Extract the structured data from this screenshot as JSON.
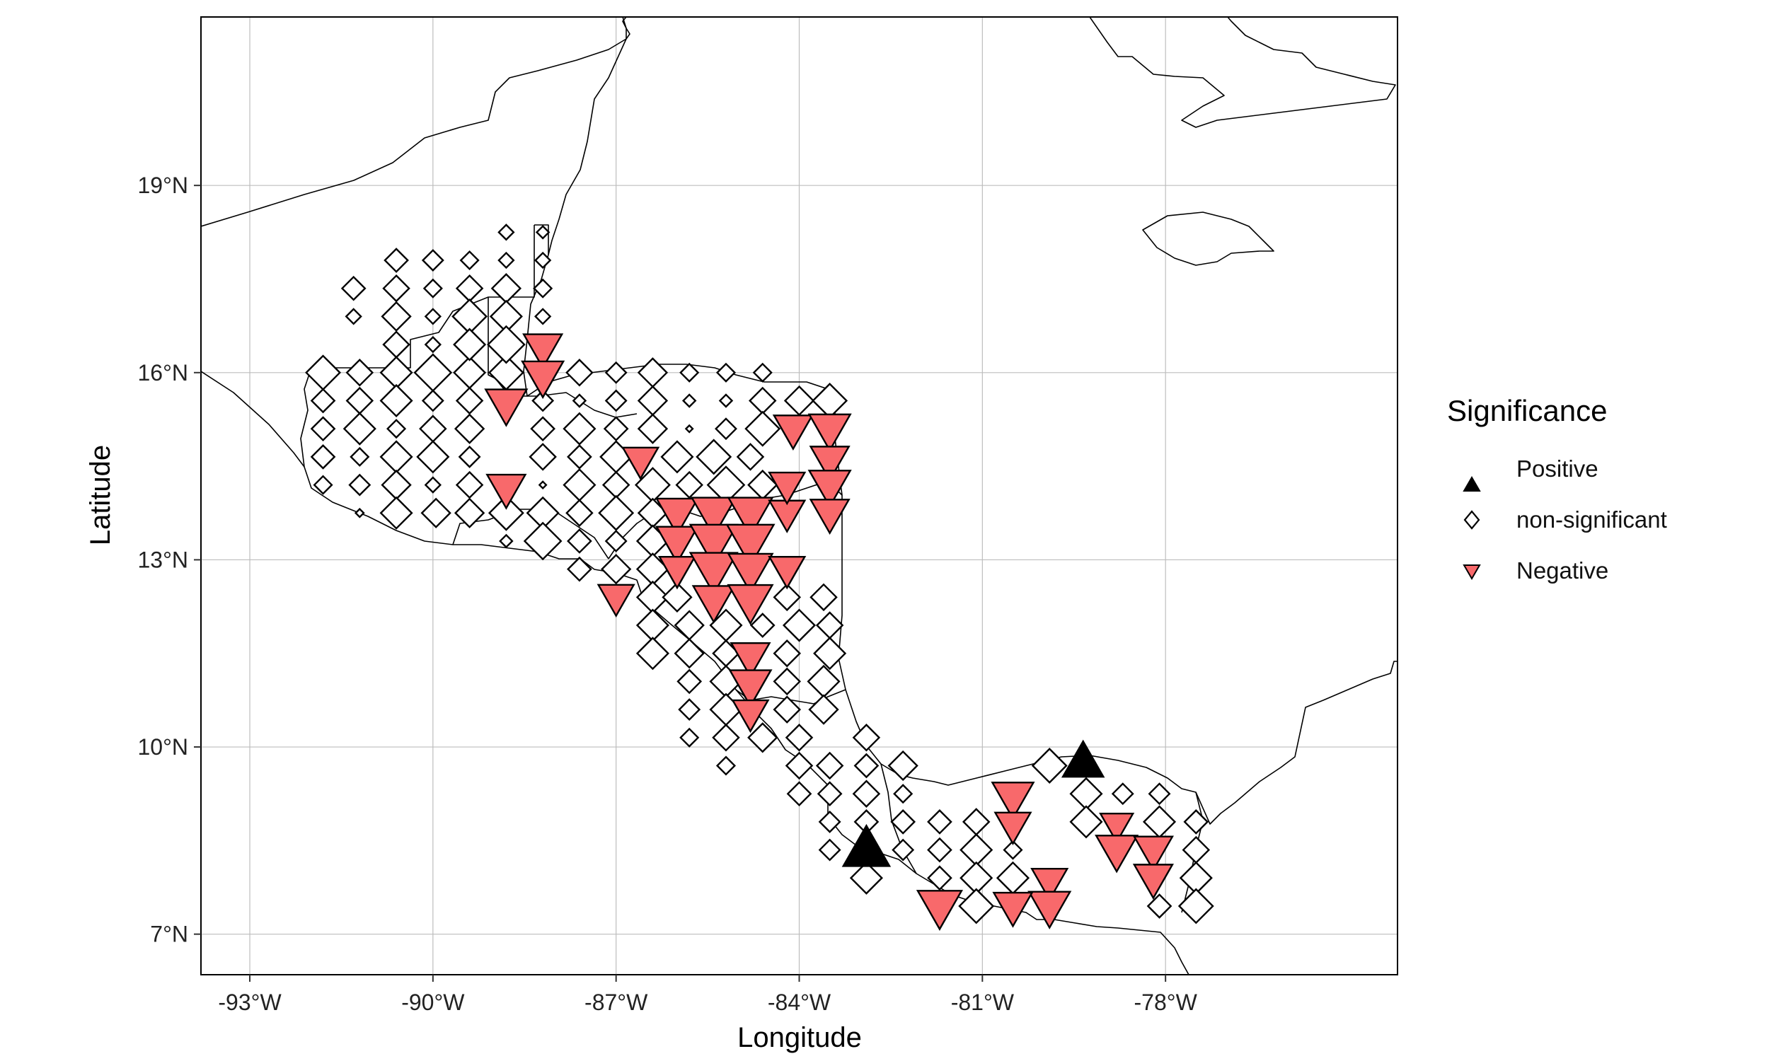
{
  "chart_data": {
    "type": "scatter",
    "xlabel": "Longitude",
    "ylabel": "Latitude",
    "xlim": [
      -93.8,
      -74.2
    ],
    "ylim": [
      6.35,
      21.7
    ],
    "x_ticks": [
      {
        "value": -93,
        "label": "-93°W"
      },
      {
        "value": -90,
        "label": "-90°W"
      },
      {
        "value": -87,
        "label": "-87°W"
      },
      {
        "value": -84,
        "label": "-84°W"
      },
      {
        "value": -81,
        "label": "-81°W"
      },
      {
        "value": -78,
        "label": "-78°W"
      }
    ],
    "y_ticks": [
      {
        "value": 7,
        "label": "7°N"
      },
      {
        "value": 10,
        "label": "10°N"
      },
      {
        "value": 13,
        "label": "13°N"
      },
      {
        "value": 16,
        "label": "16°N"
      },
      {
        "value": 19,
        "label": "19°N"
      }
    ],
    "grid": true,
    "legend": {
      "title": "Significance",
      "placement": "right",
      "entries": [
        {
          "label": "Positive",
          "shape": "triangle-up",
          "color": "#000000"
        },
        {
          "label": "non-significant",
          "shape": "diamond",
          "color": "#ffffff"
        },
        {
          "label": "Negative",
          "shape": "triangle-down",
          "color": "#f8696b"
        }
      ]
    },
    "colors": {
      "positive": "#000000",
      "nonsig": "#ffffff",
      "negative": "#f8696b"
    },
    "size_column_note": "point size encodes effect magnitude (0-3 scale)",
    "positive_points": [
      {
        "lon": -82.9,
        "lat": 8.35,
        "size": 3
      },
      {
        "lon": -79.35,
        "lat": 9.75,
        "size": 2.6
      }
    ],
    "negative_points": [
      {
        "lon": -88.2,
        "lat": 16.4,
        "size": 2.4
      },
      {
        "lon": -88.2,
        "lat": 15.95,
        "size": 2.6
      },
      {
        "lon": -88.8,
        "lat": 15.5,
        "size": 2.6
      },
      {
        "lon": -88.8,
        "lat": 14.15,
        "size": 2.4
      },
      {
        "lon": -87.0,
        "lat": 12.4,
        "size": 2.2
      },
      {
        "lon": -86.6,
        "lat": 14.6,
        "size": 2.2
      },
      {
        "lon": -86.0,
        "lat": 13.75,
        "size": 2.6
      },
      {
        "lon": -86.0,
        "lat": 13.3,
        "size": 2.6
      },
      {
        "lon": -86.0,
        "lat": 12.85,
        "size": 2.2
      },
      {
        "lon": -85.4,
        "lat": 13.75,
        "size": 2.8
      },
      {
        "lon": -85.4,
        "lat": 13.3,
        "size": 3
      },
      {
        "lon": -85.4,
        "lat": 12.85,
        "size": 3
      },
      {
        "lon": -85.4,
        "lat": 12.35,
        "size": 2.6
      },
      {
        "lon": -84.8,
        "lat": 13.75,
        "size": 2.8
      },
      {
        "lon": -84.8,
        "lat": 13.3,
        "size": 3
      },
      {
        "lon": -84.8,
        "lat": 12.85,
        "size": 2.8
      },
      {
        "lon": -84.8,
        "lat": 12.35,
        "size": 2.8
      },
      {
        "lon": -84.2,
        "lat": 12.85,
        "size": 2.2
      },
      {
        "lon": -84.2,
        "lat": 13.75,
        "size": 2.2
      },
      {
        "lon": -84.2,
        "lat": 14.2,
        "size": 2.2
      },
      {
        "lon": -84.1,
        "lat": 15.1,
        "size": 2.4
      },
      {
        "lon": -83.5,
        "lat": 15.1,
        "size": 2.6
      },
      {
        "lon": -83.5,
        "lat": 14.6,
        "size": 2.4
      },
      {
        "lon": -83.5,
        "lat": 14.2,
        "size": 2.6
      },
      {
        "lon": -83.5,
        "lat": 13.75,
        "size": 2.4
      },
      {
        "lon": -84.8,
        "lat": 11.45,
        "size": 2.4
      },
      {
        "lon": -84.8,
        "lat": 11.0,
        "size": 2.6
      },
      {
        "lon": -84.8,
        "lat": 10.55,
        "size": 2.2
      },
      {
        "lon": -80.5,
        "lat": 9.2,
        "size": 2.6
      },
      {
        "lon": -80.5,
        "lat": 8.75,
        "size": 2.2
      },
      {
        "lon": -78.8,
        "lat": 8.75,
        "size": 2.0
      },
      {
        "lon": -78.8,
        "lat": 8.35,
        "size": 2.6
      },
      {
        "lon": -78.2,
        "lat": 8.35,
        "size": 2.4
      },
      {
        "lon": -78.2,
        "lat": 7.9,
        "size": 2.4
      },
      {
        "lon": -79.9,
        "lat": 7.85,
        "size": 2.2
      },
      {
        "lon": -79.9,
        "lat": 7.45,
        "size": 2.6
      },
      {
        "lon": -80.5,
        "lat": 7.45,
        "size": 2.4
      },
      {
        "lon": -81.7,
        "lat": 7.45,
        "size": 2.8
      }
    ],
    "nonsig_points": [
      {
        "lon": -91.8,
        "lat": 16.0,
        "size": 2.2
      },
      {
        "lon": -91.2,
        "lat": 16.0,
        "size": 1.6
      },
      {
        "lon": -90.6,
        "lat": 16.0,
        "size": 2.0
      },
      {
        "lon": -90.0,
        "lat": 16.0,
        "size": 2.4
      },
      {
        "lon": -89.4,
        "lat": 16.0,
        "size": 2.0
      },
      {
        "lon": -88.8,
        "lat": 16.0,
        "size": 2.2
      },
      {
        "lon": -91.8,
        "lat": 15.55,
        "size": 1.4
      },
      {
        "lon": -91.2,
        "lat": 15.55,
        "size": 1.6
      },
      {
        "lon": -90.6,
        "lat": 15.55,
        "size": 2.0
      },
      {
        "lon": -90.0,
        "lat": 15.55,
        "size": 1.2
      },
      {
        "lon": -89.4,
        "lat": 15.55,
        "size": 1.6
      },
      {
        "lon": -91.8,
        "lat": 15.1,
        "size": 1.4
      },
      {
        "lon": -91.2,
        "lat": 15.1,
        "size": 2.0
      },
      {
        "lon": -90.6,
        "lat": 15.1,
        "size": 1.0
      },
      {
        "lon": -90.0,
        "lat": 15.1,
        "size": 1.6
      },
      {
        "lon": -89.4,
        "lat": 15.1,
        "size": 1.8
      },
      {
        "lon": -91.8,
        "lat": 14.65,
        "size": 1.4
      },
      {
        "lon": -91.2,
        "lat": 14.65,
        "size": 1.0
      },
      {
        "lon": -90.6,
        "lat": 14.65,
        "size": 2.0
      },
      {
        "lon": -90.0,
        "lat": 14.65,
        "size": 2.0
      },
      {
        "lon": -89.4,
        "lat": 14.65,
        "size": 1.2
      },
      {
        "lon": -91.8,
        "lat": 14.2,
        "size": 1.0
      },
      {
        "lon": -91.2,
        "lat": 14.2,
        "size": 1.2
      },
      {
        "lon": -90.6,
        "lat": 14.2,
        "size": 1.8
      },
      {
        "lon": -90.0,
        "lat": 14.2,
        "size": 0.8
      },
      {
        "lon": -89.4,
        "lat": 14.2,
        "size": 1.6
      },
      {
        "lon": -91.2,
        "lat": 13.75,
        "size": 0.3
      },
      {
        "lon": -90.6,
        "lat": 13.75,
        "size": 2.0
      },
      {
        "lon": -89.95,
        "lat": 13.75,
        "size": 1.8
      },
      {
        "lon": -89.4,
        "lat": 13.75,
        "size": 1.8
      },
      {
        "lon": -91.3,
        "lat": 17.35,
        "size": 1.4
      },
      {
        "lon": -91.3,
        "lat": 16.9,
        "size": 0.8
      },
      {
        "lon": -90.6,
        "lat": 17.8,
        "size": 1.4
      },
      {
        "lon": -90.0,
        "lat": 17.8,
        "size": 1.2
      },
      {
        "lon": -89.4,
        "lat": 17.8,
        "size": 1.0
      },
      {
        "lon": -88.8,
        "lat": 17.8,
        "size": 0.8
      },
      {
        "lon": -88.2,
        "lat": 17.8,
        "size": 0.8
      },
      {
        "lon": -90.6,
        "lat": 17.35,
        "size": 1.6
      },
      {
        "lon": -90.0,
        "lat": 17.35,
        "size": 1.0
      },
      {
        "lon": -89.4,
        "lat": 17.35,
        "size": 1.6
      },
      {
        "lon": -88.8,
        "lat": 17.35,
        "size": 1.8
      },
      {
        "lon": -88.2,
        "lat": 17.35,
        "size": 1.0
      },
      {
        "lon": -90.6,
        "lat": 16.9,
        "size": 1.8
      },
      {
        "lon": -90.0,
        "lat": 16.9,
        "size": 0.8
      },
      {
        "lon": -89.4,
        "lat": 16.9,
        "size": 2.2
      },
      {
        "lon": -88.8,
        "lat": 16.9,
        "size": 2.0
      },
      {
        "lon": -88.2,
        "lat": 16.9,
        "size": 0.8
      },
      {
        "lon": -90.6,
        "lat": 16.45,
        "size": 1.6
      },
      {
        "lon": -90.0,
        "lat": 16.45,
        "size": 0.8
      },
      {
        "lon": -89.4,
        "lat": 16.45,
        "size": 2.0
      },
      {
        "lon": -88.8,
        "lat": 16.45,
        "size": 2.4
      },
      {
        "lon": -88.8,
        "lat": 18.25,
        "size": 0.8
      },
      {
        "lon": -88.2,
        "lat": 18.25,
        "size": 0.6
      },
      {
        "lon": -87.6,
        "lat": 16.0,
        "size": 1.6
      },
      {
        "lon": -87.0,
        "lat": 16.0,
        "size": 1.2
      },
      {
        "lon": -86.4,
        "lat": 16.0,
        "size": 1.8
      },
      {
        "lon": -85.8,
        "lat": 16.0,
        "size": 1.0
      },
      {
        "lon": -85.2,
        "lat": 16.0,
        "size": 1.0
      },
      {
        "lon": -84.6,
        "lat": 16.0,
        "size": 1.0
      },
      {
        "lon": -88.2,
        "lat": 15.55,
        "size": 1.2
      },
      {
        "lon": -87.6,
        "lat": 15.55,
        "size": 0.6
      },
      {
        "lon": -87.0,
        "lat": 15.55,
        "size": 1.2
      },
      {
        "lon": -86.4,
        "lat": 15.55,
        "size": 1.8
      },
      {
        "lon": -85.8,
        "lat": 15.55,
        "size": 0.6
      },
      {
        "lon": -85.2,
        "lat": 15.55,
        "size": 0.6
      },
      {
        "lon": -84.6,
        "lat": 15.55,
        "size": 1.6
      },
      {
        "lon": -84.0,
        "lat": 15.55,
        "size": 1.8
      },
      {
        "lon": -83.5,
        "lat": 15.55,
        "size": 2.2
      },
      {
        "lon": -88.2,
        "lat": 15.1,
        "size": 1.4
      },
      {
        "lon": -87.6,
        "lat": 15.1,
        "size": 2.0
      },
      {
        "lon": -87.0,
        "lat": 15.1,
        "size": 1.4
      },
      {
        "lon": -86.4,
        "lat": 15.1,
        "size": 1.8
      },
      {
        "lon": -85.8,
        "lat": 15.1,
        "size": 0.2
      },
      {
        "lon": -85.2,
        "lat": 15.1,
        "size": 1.2
      },
      {
        "lon": -84.6,
        "lat": 15.1,
        "size": 2.2
      },
      {
        "lon": -88.2,
        "lat": 14.65,
        "size": 1.6
      },
      {
        "lon": -87.6,
        "lat": 14.65,
        "size": 1.4
      },
      {
        "lon": -87.0,
        "lat": 14.65,
        "size": 2.0
      },
      {
        "lon": -86.0,
        "lat": 14.65,
        "size": 2.0
      },
      {
        "lon": -85.4,
        "lat": 14.65,
        "size": 2.2
      },
      {
        "lon": -84.8,
        "lat": 14.65,
        "size": 1.6
      },
      {
        "lon": -88.2,
        "lat": 14.2,
        "size": 0.2
      },
      {
        "lon": -87.6,
        "lat": 14.2,
        "size": 2.0
      },
      {
        "lon": -87.0,
        "lat": 14.2,
        "size": 1.6
      },
      {
        "lon": -86.4,
        "lat": 14.2,
        "size": 2.2
      },
      {
        "lon": -85.8,
        "lat": 14.2,
        "size": 1.6
      },
      {
        "lon": -85.2,
        "lat": 14.2,
        "size": 2.4
      },
      {
        "lon": -84.6,
        "lat": 14.2,
        "size": 1.8
      },
      {
        "lon": -88.8,
        "lat": 13.75,
        "size": 2.2
      },
      {
        "lon": -88.2,
        "lat": 13.75,
        "size": 2.0
      },
      {
        "lon": -87.6,
        "lat": 13.75,
        "size": 1.6
      },
      {
        "lon": -87.0,
        "lat": 13.75,
        "size": 2.2
      },
      {
        "lon": -86.4,
        "lat": 13.75,
        "size": 1.8
      },
      {
        "lon": -88.8,
        "lat": 13.3,
        "size": 0.6
      },
      {
        "lon": -88.2,
        "lat": 13.3,
        "size": 2.4
      },
      {
        "lon": -87.6,
        "lat": 13.3,
        "size": 1.4
      },
      {
        "lon": -87.0,
        "lat": 13.3,
        "size": 1.2
      },
      {
        "lon": -86.4,
        "lat": 13.3,
        "size": 2.0
      },
      {
        "lon": -87.6,
        "lat": 12.85,
        "size": 1.4
      },
      {
        "lon": -87.0,
        "lat": 12.85,
        "size": 1.8
      },
      {
        "lon": -86.4,
        "lat": 12.85,
        "size": 2.0
      },
      {
        "lon": -86.4,
        "lat": 12.4,
        "size": 2.0
      },
      {
        "lon": -86.0,
        "lat": 12.4,
        "size": 1.8
      },
      {
        "lon": -84.2,
        "lat": 12.4,
        "size": 1.6
      },
      {
        "lon": -83.6,
        "lat": 12.4,
        "size": 1.6
      },
      {
        "lon": -86.4,
        "lat": 11.95,
        "size": 2.0
      },
      {
        "lon": -85.8,
        "lat": 11.95,
        "size": 1.8
      },
      {
        "lon": -85.2,
        "lat": 11.95,
        "size": 2.0
      },
      {
        "lon": -84.6,
        "lat": 11.95,
        "size": 1.4
      },
      {
        "lon": -84.0,
        "lat": 11.95,
        "size": 2.0
      },
      {
        "lon": -83.5,
        "lat": 11.95,
        "size": 1.6
      },
      {
        "lon": -86.4,
        "lat": 11.5,
        "size": 2.0
      },
      {
        "lon": -85.8,
        "lat": 11.5,
        "size": 1.8
      },
      {
        "lon": -85.2,
        "lat": 11.5,
        "size": 1.6
      },
      {
        "lon": -84.2,
        "lat": 11.5,
        "size": 1.6
      },
      {
        "lon": -83.5,
        "lat": 11.5,
        "size": 2.0
      },
      {
        "lon": -85.8,
        "lat": 11.05,
        "size": 1.4
      },
      {
        "lon": -85.2,
        "lat": 11.05,
        "size": 2.0
      },
      {
        "lon": -84.2,
        "lat": 11.05,
        "size": 1.6
      },
      {
        "lon": -83.6,
        "lat": 11.05,
        "size": 2.0
      },
      {
        "lon": -85.8,
        "lat": 10.6,
        "size": 1.2
      },
      {
        "lon": -85.2,
        "lat": 10.6,
        "size": 2.0
      },
      {
        "lon": -84.2,
        "lat": 10.6,
        "size": 1.6
      },
      {
        "lon": -83.6,
        "lat": 10.6,
        "size": 1.8
      },
      {
        "lon": -85.8,
        "lat": 10.15,
        "size": 1.0
      },
      {
        "lon": -85.2,
        "lat": 10.15,
        "size": 1.6
      },
      {
        "lon": -84.6,
        "lat": 10.15,
        "size": 1.8
      },
      {
        "lon": -84.0,
        "lat": 10.15,
        "size": 1.6
      },
      {
        "lon": -82.9,
        "lat": 10.15,
        "size": 1.6
      },
      {
        "lon": -85.2,
        "lat": 9.7,
        "size": 1.0
      },
      {
        "lon": -84.0,
        "lat": 9.7,
        "size": 1.6
      },
      {
        "lon": -83.5,
        "lat": 9.7,
        "size": 1.6
      },
      {
        "lon": -82.9,
        "lat": 9.7,
        "size": 1.4
      },
      {
        "lon": -82.3,
        "lat": 9.7,
        "size": 1.8
      },
      {
        "lon": -84.0,
        "lat": 9.25,
        "size": 1.4
      },
      {
        "lon": -83.5,
        "lat": 9.25,
        "size": 1.4
      },
      {
        "lon": -82.9,
        "lat": 9.25,
        "size": 1.6
      },
      {
        "lon": -82.3,
        "lat": 9.25,
        "size": 1.0
      },
      {
        "lon": -83.5,
        "lat": 8.8,
        "size": 1.2
      },
      {
        "lon": -82.9,
        "lat": 8.8,
        "size": 1.4
      },
      {
        "lon": -82.3,
        "lat": 8.8,
        "size": 1.4
      },
      {
        "lon": -81.7,
        "lat": 8.8,
        "size": 1.4
      },
      {
        "lon": -81.1,
        "lat": 8.8,
        "size": 1.6
      },
      {
        "lon": -83.5,
        "lat": 8.35,
        "size": 1.2
      },
      {
        "lon": -82.3,
        "lat": 8.35,
        "size": 1.2
      },
      {
        "lon": -81.7,
        "lat": 8.35,
        "size": 1.4
      },
      {
        "lon": -81.1,
        "lat": 8.35,
        "size": 2.0
      },
      {
        "lon": -80.5,
        "lat": 8.35,
        "size": 1.0
      },
      {
        "lon": -82.9,
        "lat": 7.9,
        "size": 2.0
      },
      {
        "lon": -81.7,
        "lat": 7.9,
        "size": 1.4
      },
      {
        "lon": -81.1,
        "lat": 7.9,
        "size": 2.0
      },
      {
        "lon": -80.5,
        "lat": 7.9,
        "size": 2.0
      },
      {
        "lon": -81.1,
        "lat": 7.45,
        "size": 2.2
      },
      {
        "lon": -79.9,
        "lat": 9.7,
        "size": 2.2
      },
      {
        "lon": -79.3,
        "lat": 9.25,
        "size": 2.0
      },
      {
        "lon": -78.7,
        "lat": 9.25,
        "size": 1.2
      },
      {
        "lon": -78.1,
        "lat": 9.25,
        "size": 1.2
      },
      {
        "lon": -79.3,
        "lat": 8.8,
        "size": 2.0
      },
      {
        "lon": -78.1,
        "lat": 8.8,
        "size": 2.0
      },
      {
        "lon": -77.5,
        "lat": 8.8,
        "size": 1.4
      },
      {
        "lon": -77.5,
        "lat": 8.35,
        "size": 1.6
      },
      {
        "lon": -77.5,
        "lat": 7.9,
        "size": 2.0
      },
      {
        "lon": -78.1,
        "lat": 7.45,
        "size": 1.4
      },
      {
        "lon": -77.5,
        "lat": 7.45,
        "size": 2.2
      }
    ]
  }
}
